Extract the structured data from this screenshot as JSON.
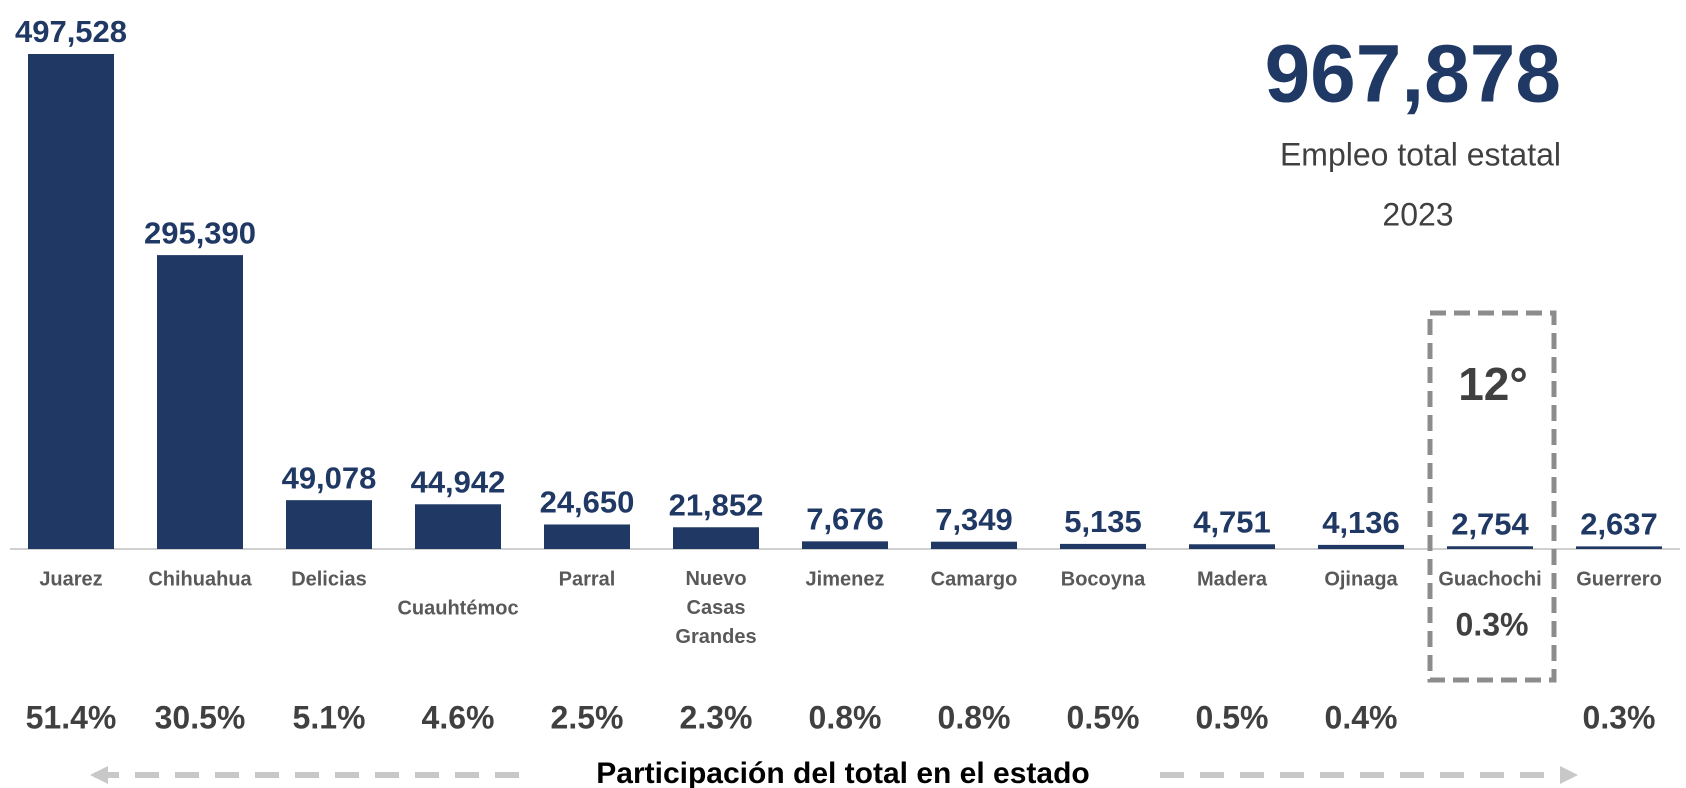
{
  "chart_data": {
    "type": "bar",
    "total": {
      "value": 967878,
      "label": "967,878"
    },
    "subtitle": "Empleo total estatal",
    "year": "2023",
    "categories": [
      "Juarez",
      "Chihuahua",
      "Delicias",
      "Cuauhtémoc",
      "Parral",
      "Nuevo Casas Grandes",
      "Jimenez",
      "Camargo",
      "Bocoyna",
      "Madera",
      "Ojinaga",
      "Guachochi",
      "Guerrero"
    ],
    "values": [
      497528,
      295390,
      49078,
      44942,
      24650,
      21852,
      7676,
      7349,
      5135,
      4751,
      4136,
      2754,
      2637
    ],
    "value_labels": [
      "497,528",
      "295,390",
      "49,078",
      "44,942",
      "24,650",
      "21,852",
      "7,676",
      "7,349",
      "5,135",
      "4,751",
      "4,136",
      "2,754",
      "2,637"
    ],
    "color": "#1f3864",
    "shares": [
      {
        "value": 51.4,
        "label": "51.4%"
      },
      {
        "value": 30.5,
        "label": "30.5%"
      },
      {
        "value": 5.1,
        "label": "5.1%"
      },
      {
        "value": 4.6,
        "label": "4.6%"
      },
      {
        "value": 2.5,
        "label": "2.5%"
      },
      {
        "value": 2.3,
        "label": "2.3%"
      },
      {
        "value": 0.8,
        "label": "0.8%"
      },
      {
        "value": 0.8,
        "label": "0.8%"
      },
      {
        "value": 0.5,
        "label": "0.5%"
      },
      {
        "value": 0.5,
        "label": "0.5%"
      },
      {
        "value": 0.4,
        "label": "0.4%"
      },
      {
        "value": 0.3,
        "label": "0.3%"
      },
      {
        "value": 0.3,
        "label": "0.3%"
      }
    ],
    "highlight": {
      "category": "Guachochi",
      "rank": "12°"
    },
    "footer": "Participación del total en el estado"
  }
}
